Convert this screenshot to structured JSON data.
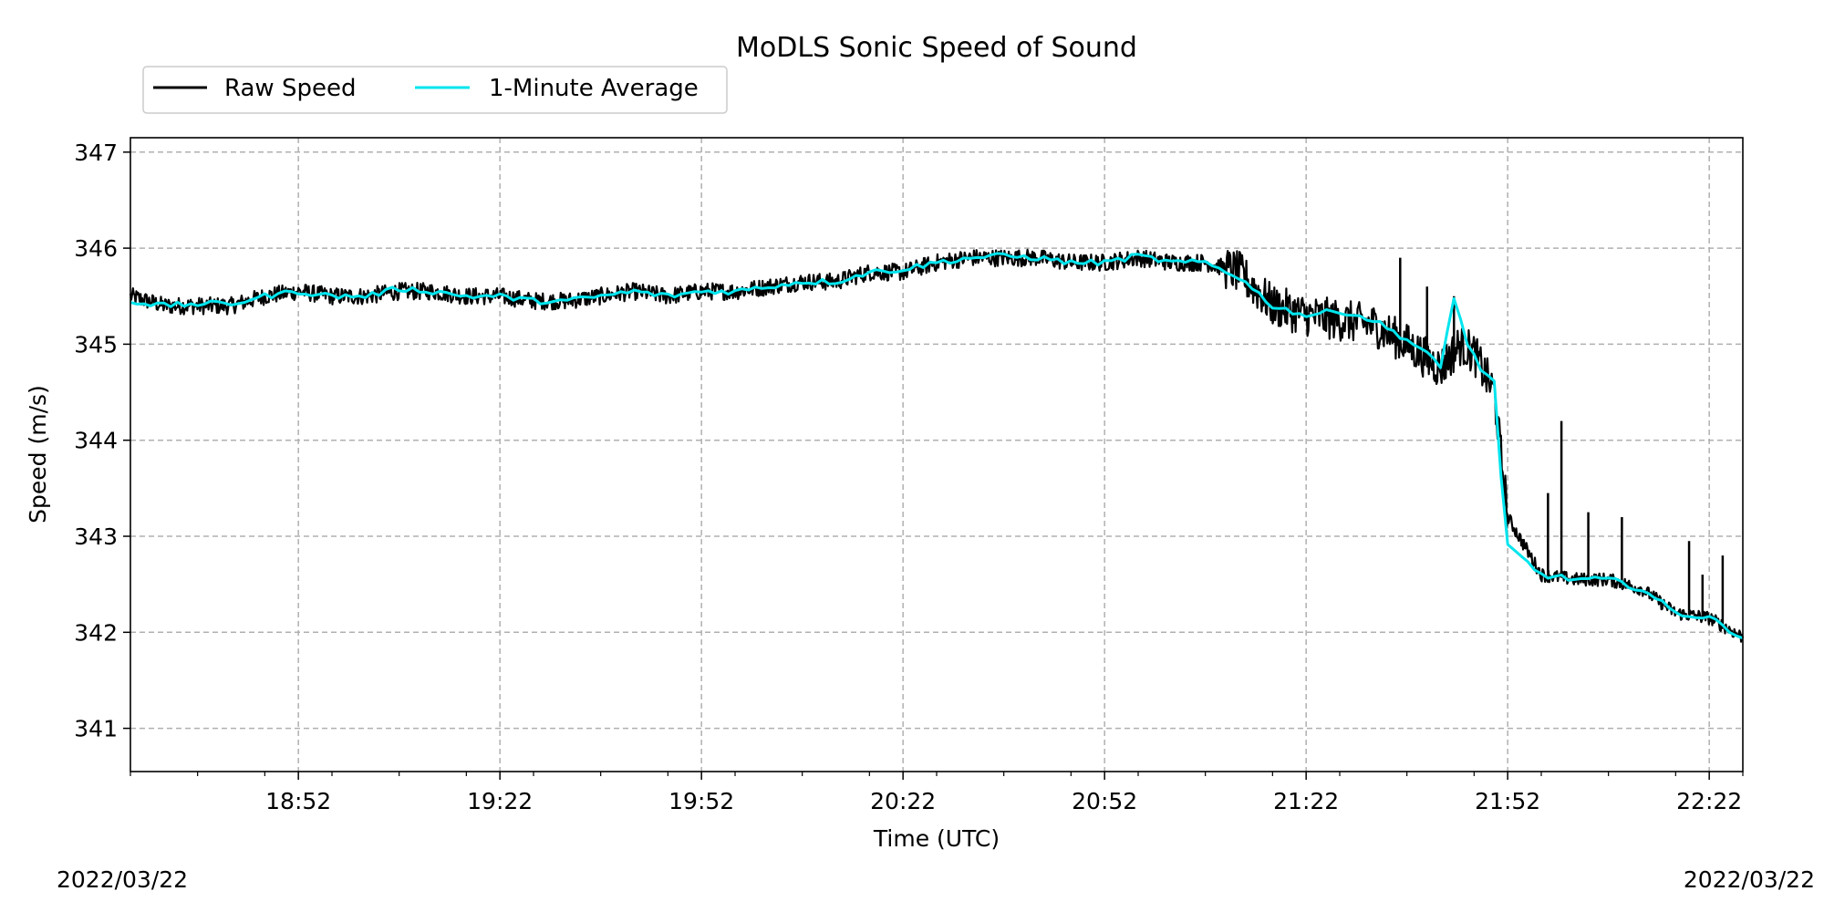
{
  "chart_data": {
    "type": "line",
    "title": "MoDLS Sonic Speed of Sound",
    "xlabel": "Time (UTC)",
    "ylabel": "Speed (m/s)",
    "date_left": "2022/03/22",
    "date_right": "2022/03/22",
    "xlim": [
      "18:27",
      "22:27"
    ],
    "ylim": [
      340.55,
      347.15
    ],
    "x_ticks": [
      "18:52",
      "19:22",
      "19:52",
      "20:22",
      "20:52",
      "21:22",
      "21:52",
      "22:22"
    ],
    "y_ticks": [
      341,
      342,
      343,
      344,
      345,
      346,
      347
    ],
    "grid": true,
    "legend": "top-left, above plot",
    "series": [
      {
        "name": "Raw Speed",
        "color": "#000000",
        "x": [
          "18:27",
          "18:32",
          "18:37",
          "18:42",
          "18:47",
          "18:52",
          "18:57",
          "19:02",
          "19:07",
          "19:12",
          "19:17",
          "19:22",
          "19:27",
          "19:32",
          "19:37",
          "19:42",
          "19:47",
          "19:52",
          "19:57",
          "20:02",
          "20:07",
          "20:12",
          "20:17",
          "20:22",
          "20:27",
          "20:32",
          "20:37",
          "20:42",
          "20:47",
          "20:52",
          "20:57",
          "21:02",
          "21:07",
          "21:12",
          "21:17",
          "21:22",
          "21:27",
          "21:32",
          "21:37",
          "21:42",
          "21:45",
          "21:47",
          "21:50",
          "21:52",
          "21:57",
          "22:02",
          "22:07",
          "22:12",
          "22:17",
          "22:22",
          "22:27"
        ],
        "values": [
          345.5,
          345.4,
          345.4,
          345.4,
          345.5,
          345.55,
          345.5,
          345.5,
          345.55,
          345.55,
          345.5,
          345.5,
          345.45,
          345.45,
          345.5,
          345.55,
          345.5,
          345.55,
          345.55,
          345.6,
          345.65,
          345.65,
          345.75,
          345.75,
          345.85,
          345.9,
          345.9,
          345.9,
          345.85,
          345.85,
          345.9,
          345.85,
          345.85,
          345.75,
          345.4,
          345.3,
          345.25,
          345.2,
          345.0,
          344.75,
          345.0,
          344.9,
          344.5,
          343.2,
          342.6,
          342.55,
          342.55,
          342.45,
          342.2,
          342.15,
          341.95
        ],
        "spikes": [
          {
            "x": "21:36",
            "value": 345.9
          },
          {
            "x": "21:40",
            "value": 345.6
          },
          {
            "x": "21:44",
            "value": 345.5
          },
          {
            "x": "22:00",
            "value": 344.2
          },
          {
            "x": "21:58",
            "value": 343.45
          },
          {
            "x": "22:04",
            "value": 343.25
          },
          {
            "x": "22:09",
            "value": 343.2
          },
          {
            "x": "22:19",
            "value": 342.95
          },
          {
            "x": "22:21",
            "value": 342.6
          },
          {
            "x": "22:24",
            "value": 342.8
          }
        ]
      },
      {
        "name": "1-Minute Average",
        "color": "#00e5ee",
        "x": [
          "18:27",
          "18:32",
          "18:37",
          "18:42",
          "18:47",
          "18:52",
          "18:57",
          "19:02",
          "19:07",
          "19:12",
          "19:17",
          "19:22",
          "19:27",
          "19:32",
          "19:37",
          "19:42",
          "19:47",
          "19:52",
          "19:57",
          "20:02",
          "20:07",
          "20:12",
          "20:17",
          "20:22",
          "20:27",
          "20:32",
          "20:37",
          "20:42",
          "20:47",
          "20:52",
          "20:57",
          "21:02",
          "21:07",
          "21:12",
          "21:17",
          "21:22",
          "21:27",
          "21:32",
          "21:37",
          "21:40",
          "21:42",
          "21:44",
          "21:46",
          "21:48",
          "21:50",
          "21:51",
          "21:52",
          "21:57",
          "22:02",
          "22:07",
          "22:12",
          "22:17",
          "22:22",
          "22:27"
        ],
        "values": [
          345.45,
          345.4,
          345.42,
          345.42,
          345.5,
          345.55,
          345.5,
          345.5,
          345.58,
          345.55,
          345.5,
          345.5,
          345.45,
          345.45,
          345.5,
          345.55,
          345.5,
          345.55,
          345.55,
          345.6,
          345.65,
          345.65,
          345.75,
          345.78,
          345.85,
          345.9,
          345.92,
          345.9,
          345.85,
          345.85,
          345.92,
          345.85,
          345.85,
          345.7,
          345.4,
          345.3,
          345.35,
          345.25,
          345.05,
          344.9,
          344.75,
          345.5,
          345.0,
          344.75,
          344.6,
          343.6,
          342.9,
          342.6,
          342.55,
          342.55,
          342.45,
          342.2,
          342.15,
          341.95
        ]
      }
    ]
  }
}
